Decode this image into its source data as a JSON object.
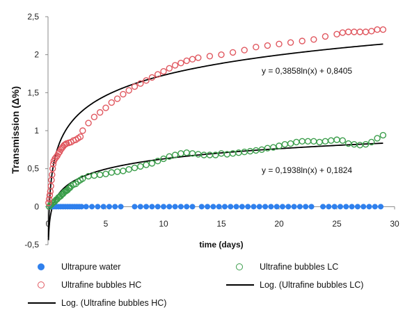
{
  "chart_data": {
    "type": "scatter",
    "title": "",
    "xlabel": "time (days)",
    "ylabel": "Transmission (Δ%)",
    "xlim": [
      0,
      30
    ],
    "ylim": [
      -0.5,
      2.5
    ],
    "x_ticks": [
      "0",
      "5",
      "10",
      "15",
      "20",
      "25",
      "30"
    ],
    "y_ticks": [
      "-0,5",
      "0",
      "0,5",
      "1",
      "1,5",
      "2",
      "2,5"
    ],
    "grid": false,
    "legend_position": "bottom",
    "series": [
      {
        "name": "Ultrapure water",
        "marker": "filled-circle",
        "color": "#2f80ed",
        "points": [
          [
            0.3,
            0
          ],
          [
            0.5,
            0
          ],
          [
            0.7,
            0
          ],
          [
            0.9,
            0
          ],
          [
            1.1,
            0
          ],
          [
            1.3,
            0
          ],
          [
            1.5,
            0
          ],
          [
            1.7,
            0
          ],
          [
            1.9,
            0
          ],
          [
            2.1,
            0
          ],
          [
            2.3,
            0
          ],
          [
            2.5,
            0
          ],
          [
            2.7,
            0
          ],
          [
            2.9,
            0
          ],
          [
            3.3,
            0
          ],
          [
            3.8,
            0
          ],
          [
            4.3,
            0
          ],
          [
            4.8,
            0
          ],
          [
            5.3,
            0
          ],
          [
            5.8,
            0
          ],
          [
            6.3,
            0
          ],
          [
            7.5,
            0
          ],
          [
            8.0,
            0
          ],
          [
            8.5,
            0
          ],
          [
            9.0,
            0
          ],
          [
            9.5,
            0
          ],
          [
            10.0,
            0
          ],
          [
            10.5,
            0
          ],
          [
            11.0,
            0
          ],
          [
            11.5,
            0
          ],
          [
            12.0,
            0
          ],
          [
            12.5,
            0
          ],
          [
            13.3,
            0
          ],
          [
            13.8,
            0
          ],
          [
            14.3,
            0
          ],
          [
            14.8,
            0
          ],
          [
            15.3,
            0
          ],
          [
            15.8,
            0
          ],
          [
            16.3,
            0
          ],
          [
            16.8,
            0
          ],
          [
            17.3,
            0
          ],
          [
            17.8,
            0
          ],
          [
            18.3,
            0
          ],
          [
            18.8,
            0
          ],
          [
            19.3,
            0
          ],
          [
            19.8,
            0
          ],
          [
            20.3,
            0
          ],
          [
            20.8,
            0
          ],
          [
            21.3,
            0
          ],
          [
            21.8,
            0
          ],
          [
            22.3,
            0
          ],
          [
            22.8,
            0
          ],
          [
            23.8,
            0
          ],
          [
            24.3,
            0
          ],
          [
            24.8,
            0
          ],
          [
            25.3,
            0
          ],
          [
            25.8,
            0
          ],
          [
            26.3,
            0
          ],
          [
            26.8,
            0
          ],
          [
            27.3,
            0
          ],
          [
            27.8,
            0
          ],
          [
            28.3,
            0
          ],
          [
            28.8,
            0
          ]
        ]
      },
      {
        "name": "Ultrafine bubbles LC",
        "marker": "open-circle",
        "color": "#3a9d4a",
        "points": [
          [
            0.1,
            0.0
          ],
          [
            0.2,
            0.02
          ],
          [
            0.3,
            0.03
          ],
          [
            0.4,
            0.05
          ],
          [
            0.5,
            0.06
          ],
          [
            0.6,
            0.07
          ],
          [
            0.7,
            0.09
          ],
          [
            0.8,
            0.1
          ],
          [
            0.9,
            0.12
          ],
          [
            1.0,
            0.13
          ],
          [
            1.1,
            0.14
          ],
          [
            1.2,
            0.16
          ],
          [
            1.3,
            0.17
          ],
          [
            1.4,
            0.19
          ],
          [
            1.5,
            0.2
          ],
          [
            1.6,
            0.21
          ],
          [
            1.7,
            0.22
          ],
          [
            1.8,
            0.24
          ],
          [
            1.9,
            0.25
          ],
          [
            2.0,
            0.27
          ],
          [
            2.2,
            0.29
          ],
          [
            2.4,
            0.3
          ],
          [
            2.6,
            0.33
          ],
          [
            2.8,
            0.35
          ],
          [
            3.0,
            0.37
          ],
          [
            3.5,
            0.4
          ],
          [
            4.0,
            0.41
          ],
          [
            4.5,
            0.42
          ],
          [
            5.0,
            0.43
          ],
          [
            5.5,
            0.45
          ],
          [
            6.0,
            0.46
          ],
          [
            6.5,
            0.47
          ],
          [
            7.0,
            0.49
          ],
          [
            7.5,
            0.51
          ],
          [
            8.0,
            0.53
          ],
          [
            8.5,
            0.55
          ],
          [
            9.0,
            0.57
          ],
          [
            9.5,
            0.6
          ],
          [
            10.0,
            0.63
          ],
          [
            10.5,
            0.66
          ],
          [
            11.0,
            0.68
          ],
          [
            11.5,
            0.7
          ],
          [
            12.0,
            0.71
          ],
          [
            12.5,
            0.7
          ],
          [
            13.0,
            0.69
          ],
          [
            13.5,
            0.68
          ],
          [
            14.0,
            0.68
          ],
          [
            14.5,
            0.68
          ],
          [
            15.0,
            0.7
          ],
          [
            15.5,
            0.69
          ],
          [
            16.0,
            0.7
          ],
          [
            16.5,
            0.71
          ],
          [
            17.0,
            0.72
          ],
          [
            17.5,
            0.73
          ],
          [
            18.0,
            0.74
          ],
          [
            18.5,
            0.75
          ],
          [
            19.0,
            0.77
          ],
          [
            19.5,
            0.78
          ],
          [
            20.0,
            0.8
          ],
          [
            20.5,
            0.82
          ],
          [
            21.0,
            0.83
          ],
          [
            21.5,
            0.85
          ],
          [
            22.0,
            0.86
          ],
          [
            22.5,
            0.86
          ],
          [
            23.0,
            0.86
          ],
          [
            23.5,
            0.85
          ],
          [
            24.0,
            0.86
          ],
          [
            24.5,
            0.87
          ],
          [
            25.0,
            0.88
          ],
          [
            25.5,
            0.87
          ],
          [
            26.0,
            0.83
          ],
          [
            26.5,
            0.82
          ],
          [
            27.0,
            0.81
          ],
          [
            27.5,
            0.82
          ],
          [
            28.0,
            0.85
          ],
          [
            28.5,
            0.9
          ],
          [
            29.0,
            0.94
          ]
        ]
      },
      {
        "name": "Ultrafine bubbles HC",
        "marker": "open-circle",
        "color": "#e0575f",
        "points": [
          [
            0.05,
            0.05
          ],
          [
            0.1,
            0.1
          ],
          [
            0.15,
            0.15
          ],
          [
            0.2,
            0.2
          ],
          [
            0.25,
            0.27
          ],
          [
            0.3,
            0.35
          ],
          [
            0.35,
            0.42
          ],
          [
            0.4,
            0.5
          ],
          [
            0.45,
            0.56
          ],
          [
            0.5,
            0.6
          ],
          [
            0.6,
            0.63
          ],
          [
            0.7,
            0.65
          ],
          [
            0.8,
            0.67
          ],
          [
            0.9,
            0.7
          ],
          [
            1.0,
            0.72
          ],
          [
            1.1,
            0.75
          ],
          [
            1.2,
            0.77
          ],
          [
            1.3,
            0.79
          ],
          [
            1.4,
            0.81
          ],
          [
            1.5,
            0.82
          ],
          [
            1.6,
            0.83
          ],
          [
            1.8,
            0.84
          ],
          [
            2.0,
            0.85
          ],
          [
            2.2,
            0.87
          ],
          [
            2.4,
            0.88
          ],
          [
            2.6,
            0.9
          ],
          [
            2.8,
            0.92
          ],
          [
            3.0,
            1.0
          ],
          [
            3.5,
            1.1
          ],
          [
            4.0,
            1.18
          ],
          [
            4.5,
            1.24
          ],
          [
            5.0,
            1.3
          ],
          [
            5.5,
            1.37
          ],
          [
            6.0,
            1.42
          ],
          [
            6.5,
            1.48
          ],
          [
            7.0,
            1.53
          ],
          [
            7.5,
            1.58
          ],
          [
            8.0,
            1.62
          ],
          [
            8.5,
            1.66
          ],
          [
            9.0,
            1.7
          ],
          [
            9.5,
            1.74
          ],
          [
            10.0,
            1.78
          ],
          [
            10.5,
            1.82
          ],
          [
            11.0,
            1.86
          ],
          [
            11.5,
            1.89
          ],
          [
            12.0,
            1.92
          ],
          [
            12.5,
            1.94
          ],
          [
            13.0,
            1.96
          ],
          [
            14.0,
            1.98
          ],
          [
            15.0,
            2.0
          ],
          [
            16.0,
            2.03
          ],
          [
            17.0,
            2.06
          ],
          [
            18.0,
            2.1
          ],
          [
            19.0,
            2.12
          ],
          [
            20.0,
            2.14
          ],
          [
            21.0,
            2.16
          ],
          [
            22.0,
            2.18
          ],
          [
            23.0,
            2.2
          ],
          [
            24.0,
            2.24
          ],
          [
            25.0,
            2.27
          ],
          [
            25.5,
            2.29
          ],
          [
            26.0,
            2.3
          ],
          [
            26.5,
            2.3
          ],
          [
            27.0,
            2.3
          ],
          [
            27.5,
            2.3
          ],
          [
            28.0,
            2.31
          ],
          [
            28.5,
            2.33
          ],
          [
            29.0,
            2.33
          ]
        ]
      },
      {
        "name": "Log. (Ultrafine bubbles LC)",
        "type": "trendline",
        "color": "#000000",
        "equation": "y = 0,1938ln(x) + 0,1824",
        "a": 0.1938,
        "b": 0.1824,
        "x_range": [
          0.04,
          29
        ]
      },
      {
        "name": "Log. (Ultrafine bubbles HC)",
        "type": "trendline",
        "color": "#000000",
        "equation": "y = 0,3858ln(x) + 0,8405",
        "a": 0.3858,
        "b": 0.8405,
        "x_range": [
          0.04,
          29
        ]
      }
    ]
  },
  "legend": {
    "items": [
      {
        "label": "Ultrapure water",
        "kind": "filled",
        "color": "#2f80ed"
      },
      {
        "label": "Ultrafine bubbles LC",
        "kind": "open",
        "color": "#3a9d4a"
      },
      {
        "label": "Ultrafine bubbles HC",
        "kind": "open",
        "color": "#e0575f"
      },
      {
        "label": "Log. (Ultrafine bubbles LC)",
        "kind": "line",
        "color": "#000000"
      },
      {
        "label": "Log. (Ultrafine bubbles HC)",
        "kind": "line",
        "color": "#000000"
      }
    ]
  }
}
